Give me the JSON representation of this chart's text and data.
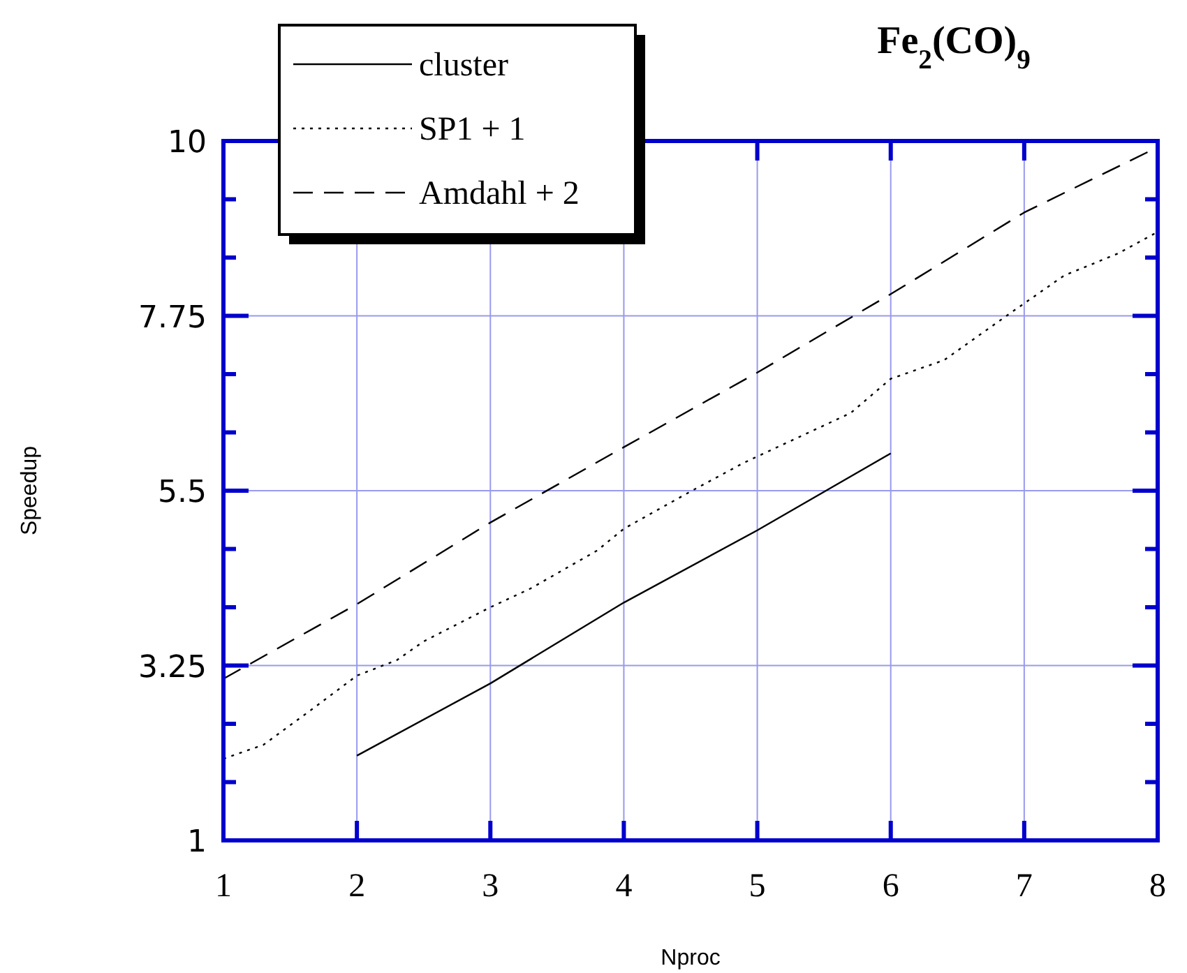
{
  "chart_data": {
    "type": "line",
    "title": "Fe$_{2}$(CO)$_{9}$",
    "xlabel": "Nproc",
    "ylabel": "Speedup",
    "xlim": [
      1,
      8
    ],
    "xticks": [
      1,
      2,
      3,
      4,
      5,
      6,
      7,
      8
    ],
    "ylim": [
      1,
      10
    ],
    "yticks": [
      1,
      {
        "value": 1.75,
        "label": null
      },
      {
        "value": 2.5,
        "label": null
      },
      3.25,
      {
        "value": 4,
        "label": null
      },
      {
        "value": 4.75,
        "label": null
      },
      5.5,
      {
        "value": 6.25,
        "label": null
      },
      {
        "value": 7,
        "label": null
      },
      7.75,
      {
        "value": 8.5,
        "label": null
      },
      {
        "value": 9.25,
        "label": null
      },
      10
    ],
    "grid": true,
    "legend": "top left",
    "series": [
      {
        "name": "cluster",
        "color": "#000000",
        "line_style": "solid",
        "x": [
          2,
          3,
          4,
          5,
          6
        ],
        "values": [
          2.09,
          3.02,
          4.06,
          4.99,
          5.98
        ]
      },
      {
        "name": "SP1 + 1",
        "color": "#000000",
        "line_style": "dotted",
        "x": [
          1,
          1.3,
          1.65,
          2,
          2.3,
          2.5,
          3,
          3.3,
          3.8,
          4,
          4.5,
          4.9,
          5.7,
          6,
          6.4,
          6.9,
          7.3,
          7.7,
          8
        ],
        "values": [
          2.05,
          2.23,
          2.67,
          3.12,
          3.32,
          3.56,
          4.0,
          4.24,
          4.73,
          5.01,
          5.49,
          5.86,
          6.5,
          6.94,
          7.18,
          7.79,
          8.27,
          8.55,
          8.83
        ]
      },
      {
        "name": "Amdahl + 2",
        "color": "#000000",
        "line_style": "dashed",
        "x": [
          1,
          2,
          3,
          4,
          5,
          6,
          7,
          8
        ],
        "values": [
          3.08,
          4.04,
          5.09,
          6.06,
          7.02,
          8.03,
          9.08,
          9.92
        ]
      }
    ]
  }
}
